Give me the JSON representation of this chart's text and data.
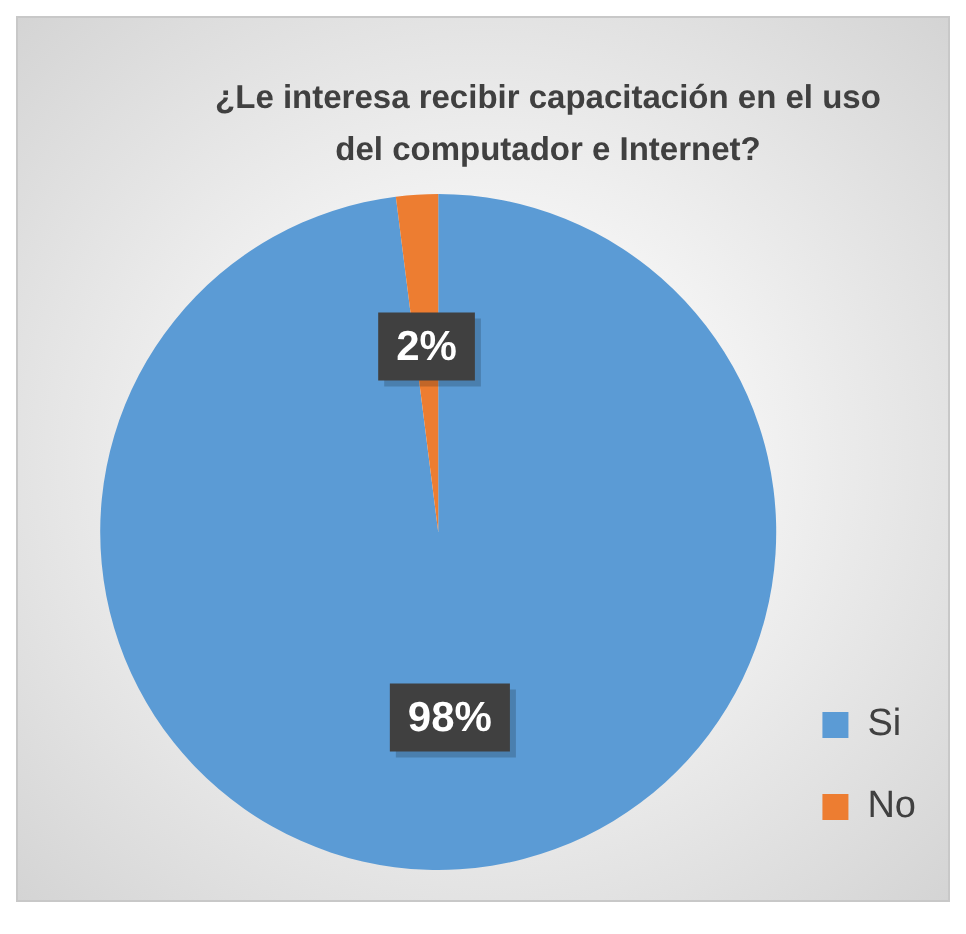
{
  "chart_data": {
    "type": "pie",
    "title": "¿Le interesa recibir capacitación en el uso del computador e Internet?",
    "categories": [
      "Si",
      "No"
    ],
    "values": [
      98,
      2
    ],
    "colors": [
      "#5b9bd5",
      "#ed7d31"
    ],
    "value_labels": [
      "98%",
      "2%"
    ],
    "legend": "bottom right"
  }
}
